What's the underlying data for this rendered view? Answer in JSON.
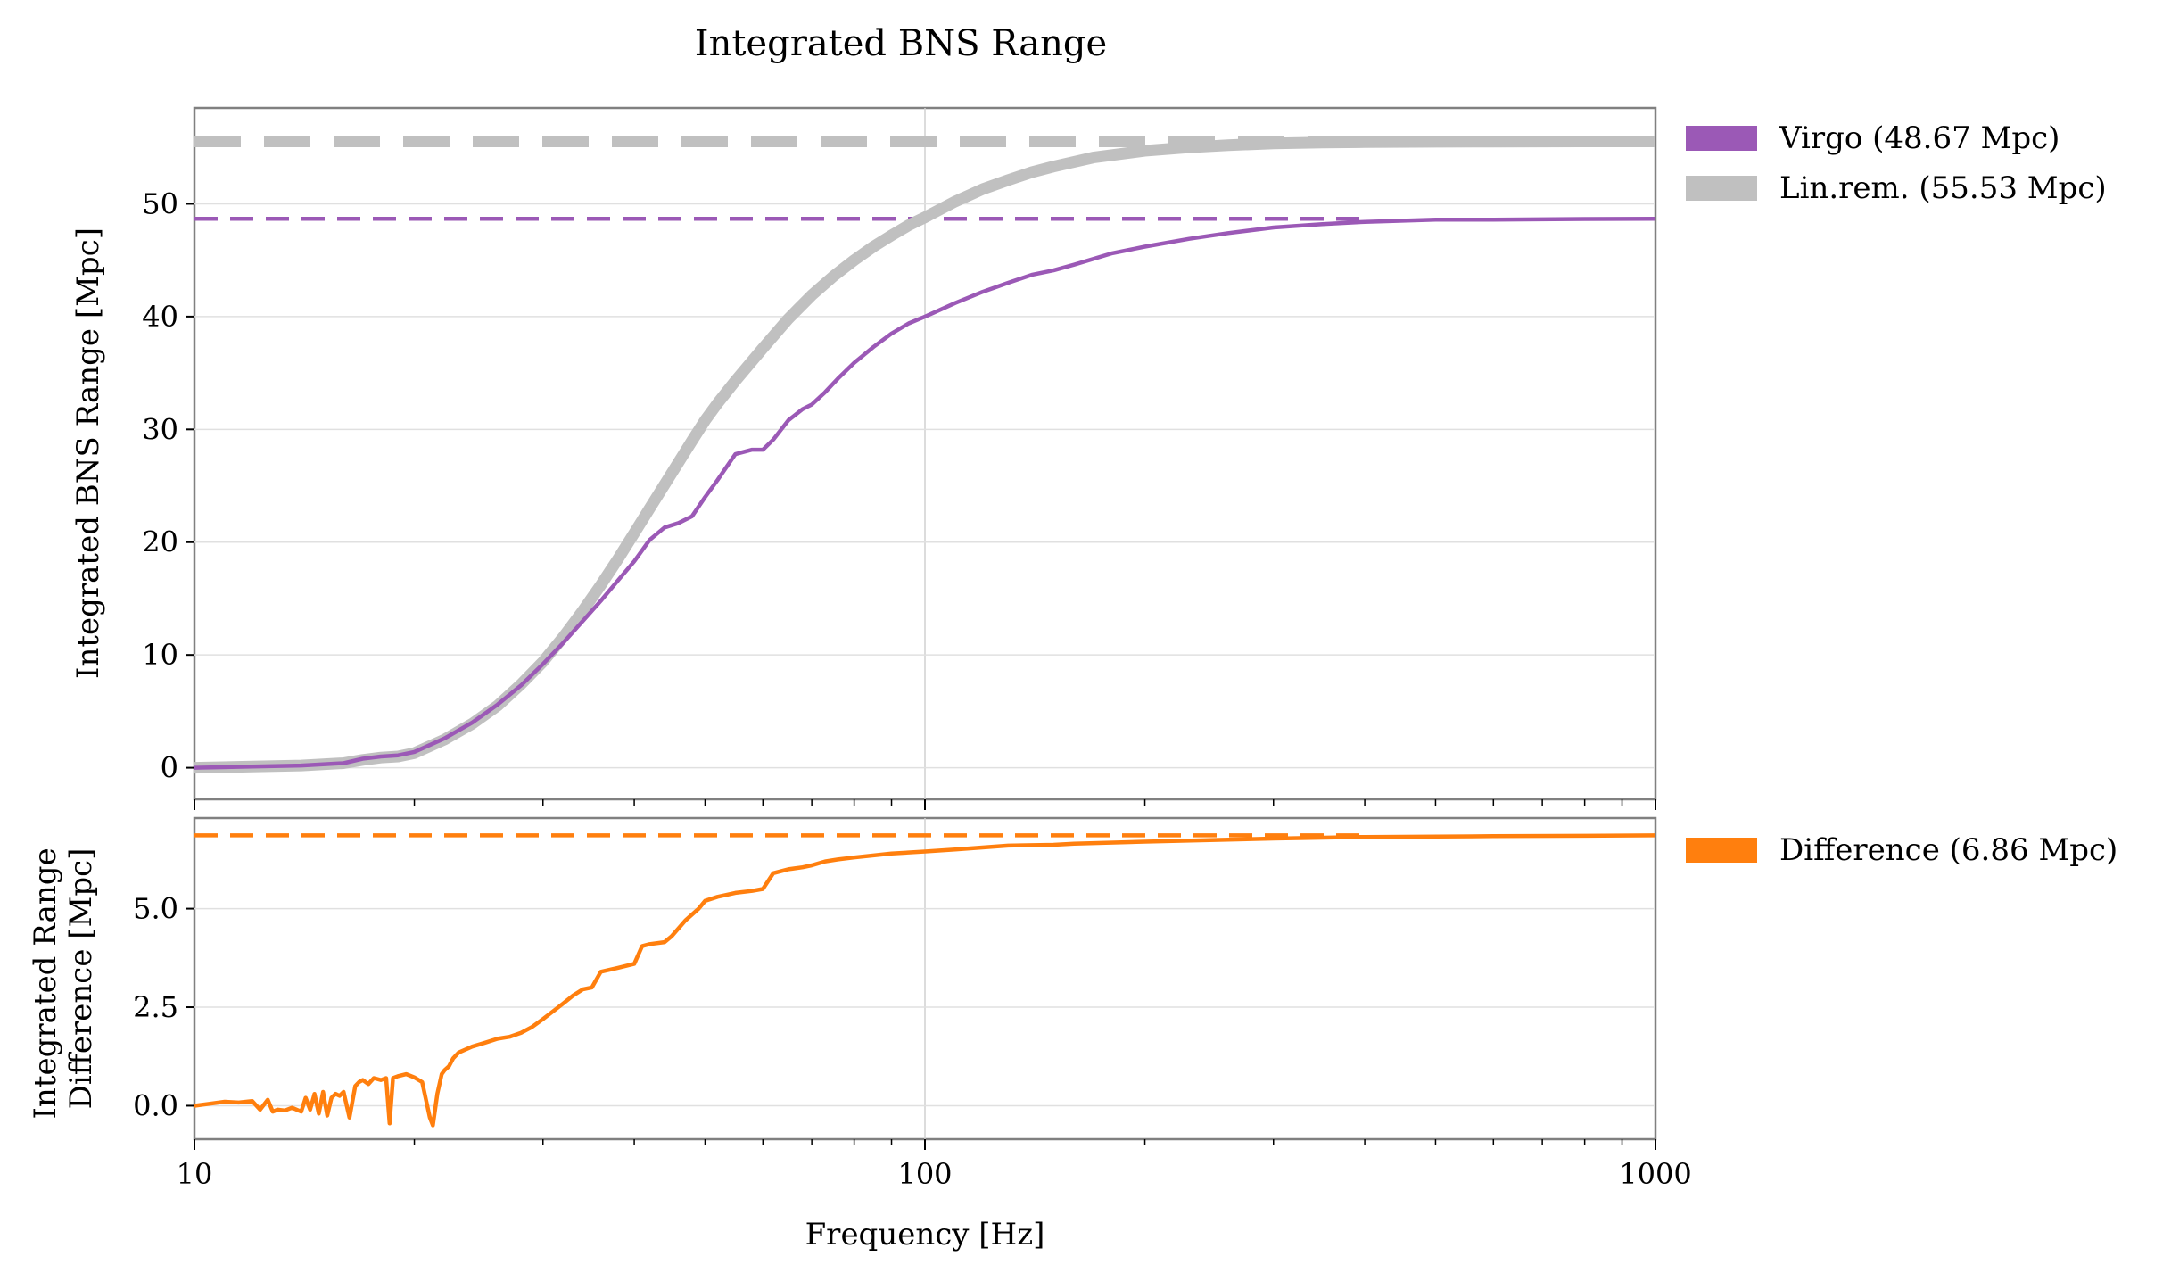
{
  "chart_data": [
    {
      "type": "line",
      "title": "Integrated BNS Range",
      "xlabel": "",
      "ylabel": "Integrated BNS Range [Mpc]",
      "xscale": "log",
      "xlim": [
        10,
        1000
      ],
      "ylim": [
        -2.8,
        58.5
      ],
      "yticks": [
        0,
        10,
        20,
        30,
        40,
        50
      ],
      "ytick_labels": [
        "0",
        "10",
        "20",
        "30",
        "40",
        "50"
      ],
      "grid": true,
      "legend_placement": "outside-right-top",
      "series": [
        {
          "name": "Virgo (48.67 Mpc)",
          "color": "#9B59B6",
          "style": "solid",
          "final_value": 48.67,
          "x": [
            10,
            12,
            14,
            16,
            17,
            18,
            19,
            20,
            22,
            24,
            26,
            28,
            30,
            32,
            34,
            36,
            38,
            40,
            42,
            44,
            46,
            48,
            50,
            52,
            55,
            58,
            60,
            62,
            65,
            68,
            70,
            73,
            76,
            80,
            85,
            90,
            95,
            100,
            110,
            120,
            130,
            140,
            150,
            160,
            180,
            200,
            230,
            260,
            300,
            350,
            400,
            500,
            600,
            800,
            1000
          ],
          "y": [
            0,
            0.1,
            0.2,
            0.4,
            0.8,
            1.0,
            1.1,
            1.4,
            2.6,
            4.0,
            5.6,
            7.3,
            9.2,
            11.1,
            13.0,
            14.8,
            16.6,
            18.3,
            20.2,
            21.3,
            21.7,
            22.3,
            24.0,
            25.5,
            27.8,
            28.2,
            28.2,
            29.1,
            30.8,
            31.8,
            32.2,
            33.3,
            34.5,
            35.9,
            37.3,
            38.5,
            39.4,
            40.0,
            41.2,
            42.2,
            43.0,
            43.7,
            44.1,
            44.6,
            45.6,
            46.2,
            46.9,
            47.4,
            47.9,
            48.2,
            48.4,
            48.6,
            48.6,
            48.65,
            48.67
          ]
        },
        {
          "name": "Lin.rem. (55.53 Mpc)",
          "color": "#C0C0C0",
          "style": "solid",
          "final_value": 55.53,
          "x": [
            10,
            12,
            14,
            16,
            17,
            18,
            19,
            20,
            22,
            24,
            26,
            28,
            30,
            32,
            34,
            36,
            38,
            40,
            42,
            45,
            48,
            50,
            52,
            55,
            60,
            65,
            70,
            75,
            80,
            85,
            90,
            95,
            100,
            110,
            120,
            130,
            140,
            150,
            170,
            200,
            230,
            260,
            300,
            350,
            400,
            500,
            600,
            800,
            1000
          ],
          "y": [
            0,
            0.1,
            0.2,
            0.4,
            0.7,
            0.9,
            1.0,
            1.3,
            2.5,
            3.9,
            5.5,
            7.4,
            9.4,
            11.6,
            13.9,
            16.2,
            18.5,
            20.8,
            23.0,
            26.1,
            29.0,
            30.8,
            32.3,
            34.3,
            37.2,
            39.8,
            41.9,
            43.6,
            45.0,
            46.2,
            47.2,
            48.1,
            48.8,
            50.2,
            51.3,
            52.1,
            52.8,
            53.3,
            54.1,
            54.7,
            55.0,
            55.2,
            55.35,
            55.43,
            55.47,
            55.5,
            55.52,
            55.53,
            55.53
          ]
        }
      ],
      "reference_lines": [
        {
          "series": "Virgo (48.67 Mpc)",
          "y": 48.67,
          "x_range": [
            10,
            400
          ],
          "style": "dashed",
          "color": "#9B59B6"
        },
        {
          "series": "Lin.rem. (55.53 Mpc)",
          "y": 55.53,
          "x_range": [
            10,
            400
          ],
          "style": "dashed",
          "color": "#C0C0C0"
        }
      ]
    },
    {
      "type": "line",
      "title": "",
      "xlabel": "Frequency [Hz]",
      "ylabel": "Integrated Range\nDifference [Mpc]",
      "xscale": "log",
      "xlim": [
        10,
        1000
      ],
      "xticks": [
        10,
        100,
        1000
      ],
      "xtick_labels": [
        "10",
        "100",
        "1000"
      ],
      "ylim": [
        -0.85,
        7.3
      ],
      "yticks": [
        0,
        2.5,
        5
      ],
      "ytick_labels": [
        "0.0",
        "2.5",
        "5.0"
      ],
      "grid": true,
      "legend_placement": "outside-right-top",
      "series": [
        {
          "name": "Difference (6.86 Mpc)",
          "color": "#FF7F0E",
          "style": "solid",
          "final_value": 6.86,
          "x": [
            10,
            10.5,
            11,
            11.5,
            12,
            12.3,
            12.6,
            12.8,
            13,
            13.3,
            13.6,
            14,
            14.2,
            14.4,
            14.6,
            14.8,
            15,
            15.2,
            15.4,
            15.6,
            15.8,
            16,
            16.3,
            16.6,
            16.8,
            17,
            17.3,
            17.6,
            18,
            18.3,
            18.5,
            18.7,
            19,
            19.5,
            20,
            20.5,
            21,
            21.2,
            21.5,
            21.8,
            22,
            22.3,
            22.6,
            23,
            24,
            25,
            26,
            27,
            28,
            29,
            30,
            31,
            32,
            33,
            34,
            35,
            36,
            38,
            40,
            41,
            42,
            44,
            45,
            47,
            49,
            50,
            52,
            55,
            58,
            60,
            62,
            65,
            68,
            70,
            73,
            76,
            80,
            90,
            100,
            110,
            130,
            150,
            160,
            200,
            300,
            400,
            600,
            800,
            1000
          ],
          "y": [
            0.0,
            0.05,
            0.1,
            0.08,
            0.12,
            -0.1,
            0.15,
            -0.15,
            -0.1,
            -0.12,
            -0.05,
            -0.15,
            0.2,
            -0.1,
            0.3,
            -0.2,
            0.35,
            -0.25,
            0.2,
            0.3,
            0.25,
            0.35,
            -0.3,
            0.5,
            0.6,
            0.65,
            0.55,
            0.7,
            0.65,
            0.7,
            -0.45,
            0.7,
            0.75,
            0.8,
            0.72,
            0.6,
            -0.3,
            -0.5,
            0.3,
            0.8,
            0.9,
            1.0,
            1.2,
            1.35,
            1.5,
            1.6,
            1.7,
            1.75,
            1.85,
            2.0,
            2.2,
            2.4,
            2.6,
            2.8,
            2.95,
            3.0,
            3.4,
            3.5,
            3.6,
            4.05,
            4.1,
            4.15,
            4.3,
            4.7,
            5.0,
            5.2,
            5.3,
            5.4,
            5.45,
            5.5,
            5.9,
            6.0,
            6.05,
            6.1,
            6.2,
            6.25,
            6.3,
            6.4,
            6.45,
            6.5,
            6.6,
            6.62,
            6.65,
            6.7,
            6.78,
            6.82,
            6.84,
            6.85,
            6.86
          ]
        }
      ],
      "reference_lines": [
        {
          "series": "Difference (6.86 Mpc)",
          "y": 6.86,
          "x_range": [
            10,
            400
          ],
          "style": "dashed",
          "color": "#FF7F0E"
        }
      ]
    }
  ]
}
